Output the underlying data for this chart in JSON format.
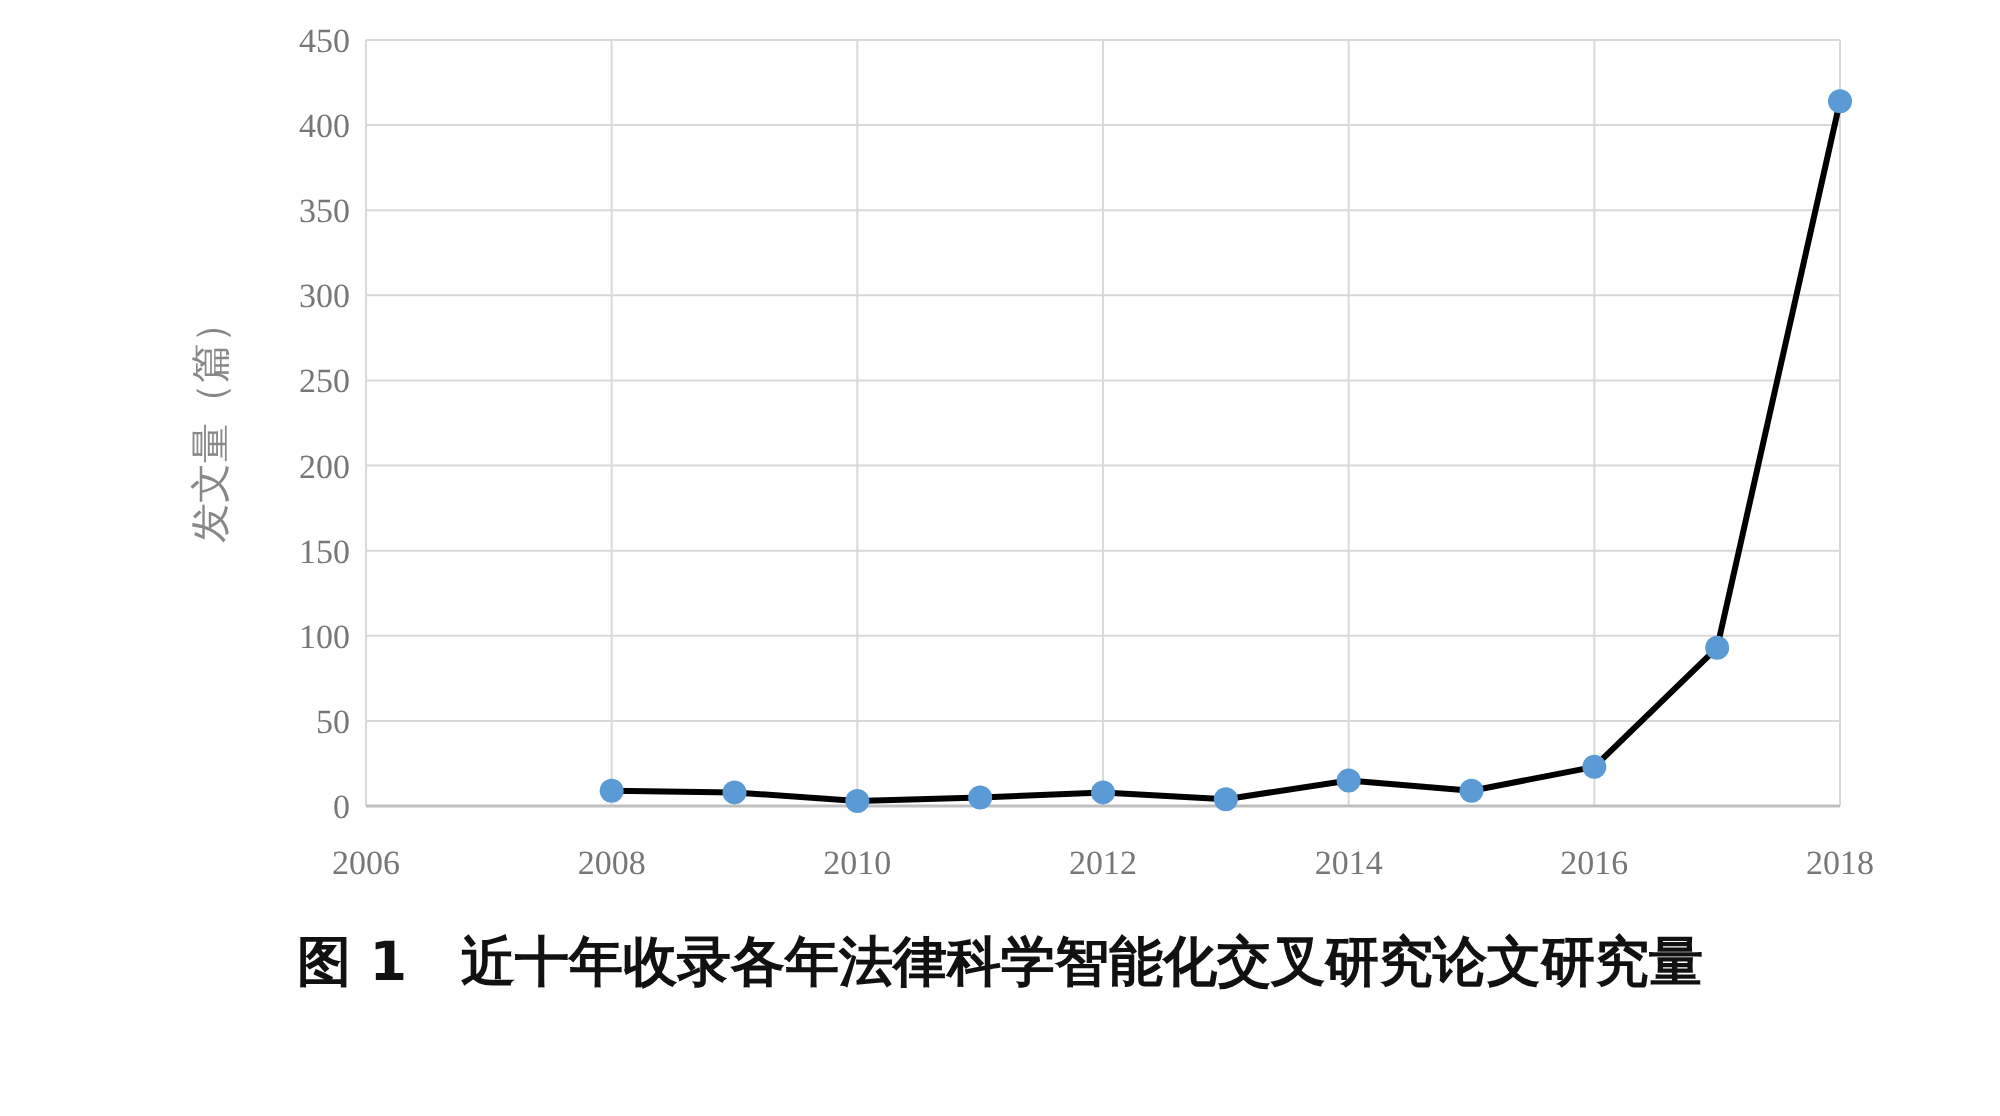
{
  "chart_data": {
    "type": "line",
    "title": "图 1　近十年收录各年法律科学智能化交叉研究论文研究量",
    "ylabel": "发文量（篇）",
    "x": [
      2008,
      2009,
      2010,
      2011,
      2012,
      2013,
      2014,
      2015,
      2016,
      2017,
      2018
    ],
    "series": [
      {
        "color": "#000000",
        "values": [
          9,
          8,
          3,
          5,
          8,
          4,
          15,
          9,
          23,
          93,
          414
        ]
      }
    ],
    "xlim": [
      2006,
      2018
    ],
    "xticks": [
      2006,
      2008,
      2010,
      2012,
      2014,
      2016,
      2018
    ],
    "ylim": [
      0,
      450
    ],
    "yticks": [
      0,
      50,
      100,
      150,
      200,
      250,
      300,
      350,
      400,
      450
    ],
    "grid": true,
    "marker": "circle",
    "line_style": "solid"
  }
}
